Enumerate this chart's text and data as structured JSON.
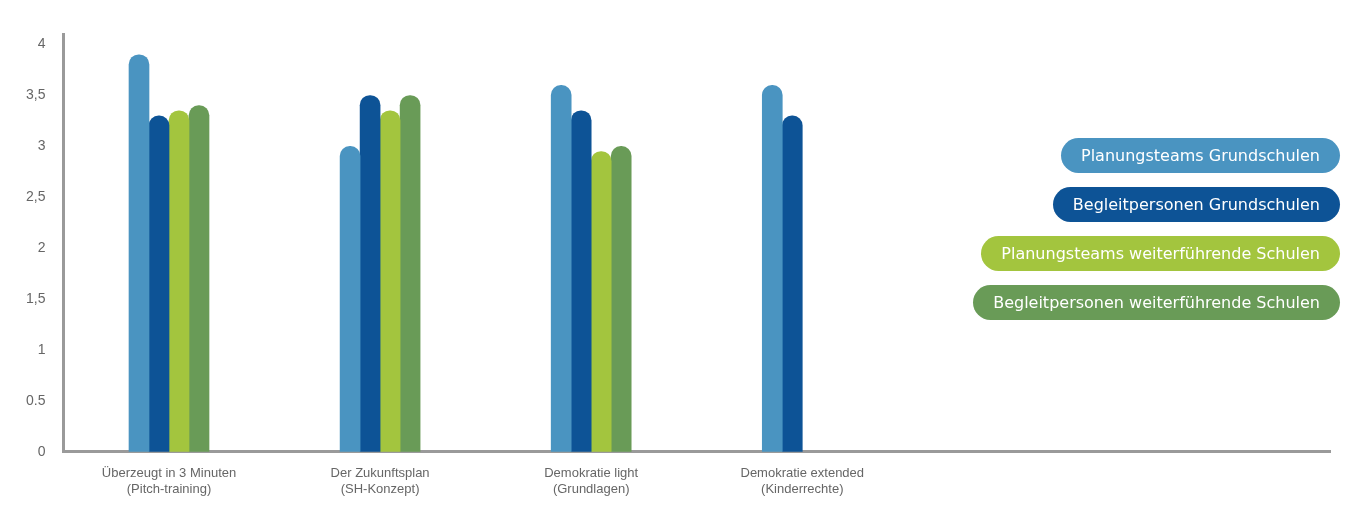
{
  "chart_data": {
    "type": "bar",
    "categories": [
      "Überzeugt in 3 Minuten\n(Pitch-training)",
      "Der Zukunftsplan\n(SH-Konzept)",
      "Demokratie light\n(Grundlagen)",
      "Demokratie extended\n(Kinderrechte)",
      null,
      null
    ],
    "series": [
      {
        "name": "Planungsteams Grundschulen",
        "color": "#4a94c1",
        "values": [
          3.9,
          3.0,
          3.6,
          3.6,
          null,
          null
        ]
      },
      {
        "name": "Begleitpersonen Grundschulen",
        "color": "#0d5396",
        "values": [
          3.3,
          3.5,
          3.35,
          3.3,
          null,
          null
        ]
      },
      {
        "name": "Planungsteams weiterführende Schulen",
        "color": "#a3c53e",
        "values": [
          3.35,
          3.35,
          2.95,
          null,
          null,
          null
        ]
      },
      {
        "name": "Begleitpersonen weiterführende Schulen",
        "color": "#699b57",
        "values": [
          3.4,
          3.5,
          3.0,
          null,
          null,
          null
        ]
      }
    ],
    "ylim": [
      0,
      4.1
    ],
    "yticks": [
      0,
      {
        "value": 0.5,
        "label": "0.5"
      },
      1,
      {
        "value": 1.5,
        "label": "1,5"
      },
      2,
      {
        "value": 2.5,
        "label": "2,5"
      },
      3,
      {
        "value": 3.5,
        "label": "3,5"
      },
      4
    ],
    "grid": false,
    "legend": "right"
  }
}
